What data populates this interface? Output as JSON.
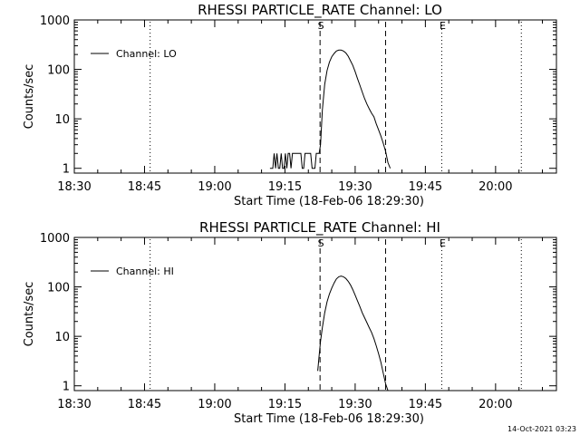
{
  "chart_data": [
    {
      "type": "line",
      "title": "RHESSI PARTICLE_RATE Channel: LO",
      "xlabel": "Start Time (18-Feb-06 18:29:30)",
      "ylabel": "Counts/sec",
      "y_scale": "log",
      "ylim": [
        0.8,
        1000
      ],
      "xlim_minutes": [
        0,
        103
      ],
      "x_ticks": [
        {
          "minute": 0,
          "label": "18:30"
        },
        {
          "minute": 15,
          "label": "18:45"
        },
        {
          "minute": 30,
          "label": "19:00"
        },
        {
          "minute": 45,
          "label": "19:15"
        },
        {
          "minute": 60,
          "label": "19:30"
        },
        {
          "minute": 75,
          "label": "19:45"
        },
        {
          "minute": 90,
          "label": "20:00"
        }
      ],
      "y_ticks": [
        {
          "value": 1,
          "label": "1"
        },
        {
          "value": 10,
          "label": "10"
        },
        {
          "value": 100,
          "label": "100"
        },
        {
          "value": 1000,
          "label": "1000"
        }
      ],
      "legend": {
        "label": "Channel: LO",
        "placement": "top-left"
      },
      "markers": [
        {
          "minute": 52.5,
          "label": "S",
          "style": "dashed"
        },
        {
          "minute": 66.5,
          "label": "",
          "style": "dashed"
        },
        {
          "minute": 78.5,
          "label": "E",
          "style": "dotted"
        },
        {
          "minute": 16.2,
          "label": "",
          "style": "dotted"
        },
        {
          "minute": 95.5,
          "label": "",
          "style": "dotted"
        }
      ],
      "series": [
        {
          "name": "Channel: LO",
          "x": [
            41.8,
            42.1,
            42.4,
            42.7,
            43.0,
            43.3,
            43.6,
            43.9,
            44.2,
            44.5,
            44.8,
            45.1,
            45.4,
            45.7,
            46.0,
            46.3,
            46.6,
            46.9,
            47.2,
            47.5,
            47.8,
            48.1,
            48.4,
            48.7,
            49.0,
            49.3,
            49.6,
            49.9,
            50.2,
            50.5,
            50.8,
            51.1,
            51.4,
            51.7,
            52.0,
            52.3,
            52.6,
            53.0,
            53.5,
            54.0,
            54.5,
            55.0,
            55.5,
            56.0,
            56.5,
            57.0,
            57.5,
            58.0,
            58.5,
            59.0,
            59.5,
            60.0,
            60.5,
            61.0,
            61.5,
            62.0,
            62.5,
            63.0,
            63.5,
            64.0,
            64.5,
            65.0,
            65.5,
            66.0,
            66.5,
            67.0,
            67.5
          ],
          "y": [
            1,
            1,
            1,
            2,
            1,
            2,
            1,
            1,
            2,
            1,
            1,
            2,
            1,
            2,
            2,
            1,
            2,
            2,
            2,
            2,
            2,
            2,
            2,
            1,
            1,
            2,
            2,
            2,
            2,
            2,
            1,
            1,
            1,
            2,
            2,
            2,
            3,
            15,
            50,
            95,
            140,
            180,
            210,
            235,
            245,
            245,
            235,
            215,
            185,
            150,
            120,
            90,
            65,
            48,
            35,
            26,
            20,
            16,
            13,
            11,
            8,
            6,
            4.5,
            3.2,
            2.2,
            1.3,
            1
          ]
        }
      ]
    },
    {
      "type": "line",
      "title": "RHESSI PARTICLE_RATE Channel: HI",
      "xlabel": "Start Time (18-Feb-06 18:29:30)",
      "ylabel": "Counts/sec",
      "y_scale": "log",
      "ylim": [
        0.8,
        1000
      ],
      "xlim_minutes": [
        0,
        103
      ],
      "x_ticks": [
        {
          "minute": 0,
          "label": "18:30"
        },
        {
          "minute": 15,
          "label": "18:45"
        },
        {
          "minute": 30,
          "label": "19:00"
        },
        {
          "minute": 45,
          "label": "19:15"
        },
        {
          "minute": 60,
          "label": "19:30"
        },
        {
          "minute": 75,
          "label": "19:45"
        },
        {
          "minute": 90,
          "label": "20:00"
        }
      ],
      "y_ticks": [
        {
          "value": 1,
          "label": "1"
        },
        {
          "value": 10,
          "label": "10"
        },
        {
          "value": 100,
          "label": "100"
        },
        {
          "value": 1000,
          "label": "1000"
        }
      ],
      "legend": {
        "label": "Channel: HI",
        "placement": "top-left"
      },
      "markers": [
        {
          "minute": 52.5,
          "label": "S",
          "style": "dashed"
        },
        {
          "minute": 66.5,
          "label": "",
          "style": "dashed"
        },
        {
          "minute": 78.5,
          "label": "E",
          "style": "dotted"
        },
        {
          "minute": 16.2,
          "label": "",
          "style": "dotted"
        },
        {
          "minute": 95.5,
          "label": "",
          "style": "dotted"
        }
      ],
      "series": [
        {
          "name": "Channel: HI",
          "x": [
            52.0,
            52.3,
            52.6,
            53.0,
            53.5,
            54.0,
            54.5,
            55.0,
            55.5,
            56.0,
            56.5,
            57.0,
            57.5,
            58.0,
            58.5,
            59.0,
            59.5,
            60.0,
            60.5,
            61.0,
            61.5,
            62.0,
            62.5,
            63.0,
            63.5,
            64.0,
            64.5,
            65.0,
            65.5,
            66.0,
            66.5,
            67.0
          ],
          "y": [
            2,
            4,
            8,
            15,
            30,
            50,
            72,
            95,
            120,
            145,
            160,
            165,
            160,
            148,
            130,
            110,
            88,
            68,
            52,
            40,
            30,
            24,
            19,
            15,
            12,
            9,
            6.5,
            4.5,
            3,
            1.8,
            1.1,
            0.8
          ]
        }
      ]
    }
  ],
  "footer": {
    "timestamp": "14-Oct-2021 03:23"
  }
}
